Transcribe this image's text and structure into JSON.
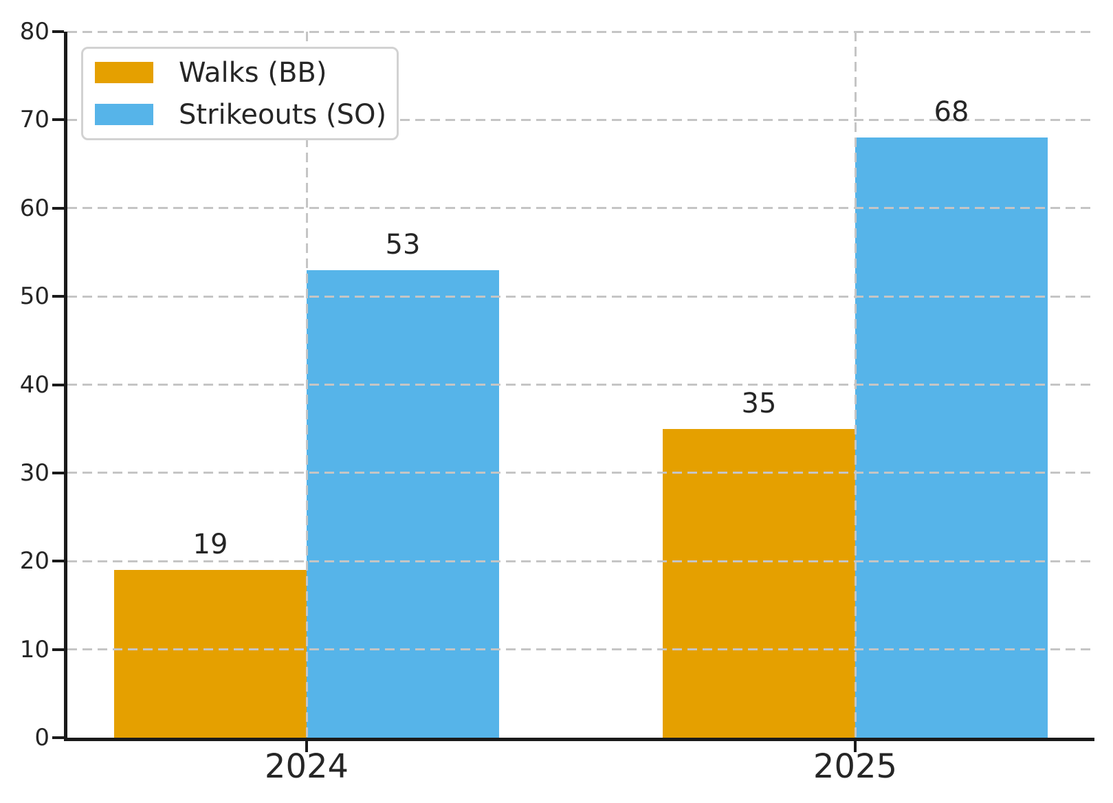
{
  "figure": {
    "background": "#ffffff",
    "axis_color": "#1a1a1a",
    "text_color": "#262626",
    "grid_color": "#c5c5c5",
    "legend_border_color": "#d2d2d2"
  },
  "chart_data": {
    "type": "bar",
    "title": "",
    "xlabel": "",
    "ylabel": "",
    "categories": [
      "2024",
      "2025"
    ],
    "series": [
      {
        "name": "Walks (BB)",
        "color": "#E5A000",
        "values": [
          19,
          35
        ]
      },
      {
        "name": "Strikeouts (SO)",
        "color": "#56B4E9",
        "values": [
          53,
          68
        ]
      }
    ],
    "bar_value_labels": [
      [
        19,
        35
      ],
      [
        53,
        68
      ]
    ],
    "ylim": [
      0,
      80
    ],
    "yticks": [
      "0",
      "10",
      "20",
      "30",
      "40",
      "50",
      "60",
      "70",
      "80"
    ],
    "grid": {
      "horizontal": true,
      "vertical": true,
      "style": "dashed",
      "above_bars": true
    },
    "legend_position": "upper left"
  }
}
